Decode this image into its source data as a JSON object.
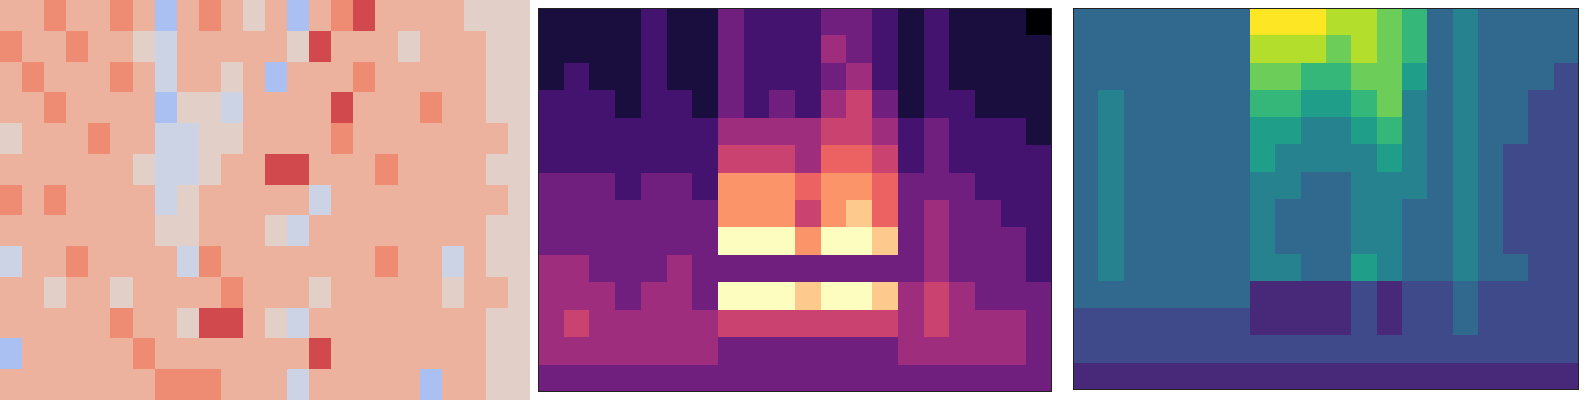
{
  "chart_data": [
    {
      "type": "heatmap",
      "color": "coolwarm",
      "tick_labels": false,
      "zlim": [
        0,
        9
      ],
      "cells": [
        [
          6,
          6,
          7,
          6,
          6,
          7,
          6,
          3,
          6,
          7,
          6,
          5,
          6,
          3,
          6,
          7,
          8,
          6,
          6,
          6,
          6,
          5,
          5,
          5
        ],
        [
          7,
          6,
          6,
          7,
          6,
          6,
          5,
          4,
          6,
          6,
          6,
          6,
          6,
          5,
          8,
          6,
          6,
          6,
          5,
          6,
          6,
          6,
          5,
          5
        ],
        [
          6,
          7,
          6,
          6,
          6,
          7,
          6,
          4,
          6,
          6,
          5,
          6,
          3,
          6,
          6,
          6,
          7,
          6,
          6,
          6,
          6,
          6,
          5,
          5
        ],
        [
          6,
          6,
          7,
          6,
          6,
          6,
          6,
          3,
          5,
          5,
          4,
          6,
          6,
          6,
          6,
          8,
          6,
          6,
          6,
          7,
          6,
          6,
          5,
          5
        ],
        [
          5,
          6,
          6,
          6,
          7,
          6,
          6,
          4,
          4,
          5,
          5,
          6,
          6,
          6,
          6,
          7,
          6,
          6,
          6,
          6,
          6,
          6,
          6,
          5
        ],
        [
          6,
          6,
          6,
          6,
          6,
          6,
          5,
          4,
          4,
          5,
          6,
          6,
          8,
          8,
          6,
          6,
          6,
          7,
          6,
          6,
          6,
          6,
          5,
          5
        ],
        [
          7,
          6,
          7,
          6,
          6,
          6,
          6,
          4,
          5,
          6,
          6,
          6,
          6,
          6,
          4,
          6,
          6,
          6,
          6,
          6,
          6,
          6,
          6,
          5
        ],
        [
          6,
          6,
          6,
          6,
          6,
          6,
          6,
          5,
          5,
          6,
          6,
          6,
          5,
          4,
          6,
          6,
          6,
          6,
          6,
          6,
          6,
          6,
          5,
          5
        ],
        [
          4,
          6,
          6,
          7,
          6,
          6,
          6,
          6,
          4,
          7,
          6,
          6,
          6,
          6,
          6,
          6,
          6,
          7,
          6,
          6,
          4,
          6,
          5,
          5
        ],
        [
          6,
          6,
          5,
          6,
          6,
          5,
          6,
          6,
          6,
          6,
          7,
          6,
          6,
          6,
          5,
          6,
          6,
          6,
          6,
          6,
          5,
          6,
          6,
          5
        ],
        [
          6,
          6,
          6,
          6,
          6,
          7,
          6,
          6,
          5,
          8,
          8,
          6,
          5,
          4,
          6,
          6,
          6,
          6,
          6,
          6,
          6,
          6,
          5,
          5
        ],
        [
          3,
          6,
          6,
          6,
          6,
          6,
          7,
          6,
          6,
          6,
          6,
          6,
          6,
          6,
          8,
          6,
          6,
          6,
          6,
          6,
          6,
          6,
          5,
          5
        ],
        [
          6,
          6,
          6,
          6,
          6,
          6,
          6,
          7,
          7,
          7,
          6,
          6,
          6,
          4,
          6,
          6,
          6,
          6,
          6,
          3,
          6,
          6,
          5,
          5
        ]
      ]
    },
    {
      "type": "heatmap",
      "color": "magma",
      "tick_labels": false,
      "zlim": [
        0,
        9
      ],
      "cells": [
        [
          1,
          1,
          1,
          1,
          2,
          1,
          1,
          3,
          2,
          2,
          2,
          3,
          3,
          2,
          1,
          2,
          1,
          1,
          1,
          0
        ],
        [
          1,
          1,
          1,
          1,
          2,
          1,
          1,
          3,
          2,
          2,
          2,
          4,
          3,
          2,
          1,
          2,
          1,
          1,
          1,
          1
        ],
        [
          1,
          2,
          1,
          1,
          2,
          1,
          1,
          3,
          2,
          2,
          2,
          3,
          4,
          2,
          1,
          2,
          1,
          1,
          1,
          1
        ],
        [
          2,
          2,
          2,
          1,
          2,
          2,
          1,
          3,
          2,
          3,
          2,
          4,
          5,
          3,
          1,
          2,
          2,
          1,
          1,
          1
        ],
        [
          2,
          2,
          2,
          2,
          2,
          2,
          2,
          4,
          4,
          4,
          4,
          5,
          5,
          4,
          2,
          3,
          2,
          2,
          2,
          1
        ],
        [
          2,
          2,
          2,
          2,
          2,
          2,
          2,
          5,
          5,
          5,
          4,
          6,
          6,
          5,
          2,
          3,
          2,
          2,
          2,
          2
        ],
        [
          3,
          3,
          3,
          2,
          3,
          3,
          2,
          7,
          7,
          7,
          6,
          7,
          7,
          6,
          3,
          3,
          3,
          2,
          2,
          2
        ],
        [
          3,
          3,
          3,
          3,
          3,
          3,
          3,
          7,
          7,
          7,
          5,
          7,
          8,
          6,
          3,
          4,
          3,
          3,
          2,
          2
        ],
        [
          3,
          3,
          3,
          3,
          3,
          3,
          3,
          9,
          9,
          9,
          7,
          9,
          9,
          8,
          3,
          4,
          3,
          3,
          3,
          2
        ],
        [
          4,
          4,
          3,
          3,
          3,
          4,
          3,
          3,
          3,
          3,
          3,
          3,
          3,
          3,
          3,
          4,
          3,
          3,
          3,
          2
        ],
        [
          4,
          4,
          4,
          3,
          4,
          4,
          3,
          9,
          9,
          9,
          8,
          9,
          9,
          8,
          4,
          5,
          4,
          3,
          3,
          3
        ],
        [
          4,
          5,
          4,
          4,
          4,
          4,
          4,
          5,
          5,
          5,
          5,
          5,
          5,
          5,
          4,
          5,
          4,
          4,
          4,
          3
        ],
        [
          4,
          4,
          4,
          4,
          4,
          4,
          4,
          3,
          3,
          3,
          3,
          3,
          3,
          3,
          4,
          4,
          4,
          4,
          4,
          3
        ],
        [
          3,
          3,
          3,
          3,
          3,
          3,
          3,
          3,
          3,
          3,
          3,
          3,
          3,
          3,
          3,
          3,
          3,
          3,
          3,
          3
        ]
      ]
    },
    {
      "type": "heatmap",
      "color": "viridis",
      "tick_labels": false,
      "zlim": [
        0,
        9
      ],
      "cells": [
        [
          3,
          3,
          3,
          3,
          3,
          3,
          3,
          9,
          9,
          9,
          8,
          8,
          7,
          6,
          3,
          4,
          3,
          3,
          3,
          3
        ],
        [
          3,
          3,
          3,
          3,
          3,
          3,
          3,
          8,
          8,
          8,
          7,
          8,
          7,
          6,
          3,
          4,
          3,
          3,
          3,
          3
        ],
        [
          3,
          3,
          3,
          3,
          3,
          3,
          3,
          7,
          7,
          6,
          6,
          7,
          7,
          5,
          3,
          4,
          3,
          3,
          3,
          2
        ],
        [
          3,
          4,
          3,
          3,
          3,
          3,
          3,
          6,
          6,
          5,
          5,
          6,
          7,
          4,
          3,
          4,
          3,
          3,
          2,
          2
        ],
        [
          3,
          4,
          3,
          3,
          3,
          3,
          3,
          5,
          5,
          4,
          4,
          5,
          6,
          4,
          3,
          4,
          3,
          3,
          2,
          2
        ],
        [
          3,
          4,
          3,
          3,
          3,
          3,
          3,
          5,
          4,
          4,
          4,
          4,
          5,
          4,
          3,
          4,
          3,
          2,
          2,
          2
        ],
        [
          3,
          4,
          3,
          3,
          3,
          3,
          3,
          4,
          4,
          3,
          3,
          4,
          4,
          4,
          3,
          4,
          3,
          2,
          2,
          2
        ],
        [
          3,
          4,
          3,
          3,
          3,
          3,
          3,
          4,
          3,
          3,
          3,
          4,
          4,
          3,
          3,
          4,
          3,
          2,
          2,
          2
        ],
        [
          3,
          4,
          3,
          3,
          3,
          3,
          3,
          4,
          3,
          3,
          3,
          4,
          4,
          3,
          3,
          4,
          3,
          2,
          2,
          2
        ],
        [
          3,
          4,
          3,
          3,
          3,
          3,
          3,
          4,
          4,
          3,
          3,
          5,
          4,
          3,
          3,
          4,
          3,
          3,
          2,
          2
        ],
        [
          3,
          3,
          3,
          3,
          3,
          3,
          3,
          1,
          1,
          1,
          1,
          2,
          1,
          2,
          2,
          3,
          2,
          2,
          2,
          2
        ],
        [
          2,
          2,
          2,
          2,
          2,
          2,
          2,
          1,
          1,
          1,
          1,
          2,
          1,
          2,
          2,
          3,
          2,
          2,
          2,
          2
        ],
        [
          2,
          2,
          2,
          2,
          2,
          2,
          2,
          2,
          2,
          2,
          2,
          2,
          2,
          2,
          2,
          2,
          2,
          2,
          2,
          2
        ],
        [
          1,
          1,
          1,
          1,
          1,
          1,
          1,
          1,
          1,
          1,
          1,
          1,
          1,
          1,
          1,
          1,
          1,
          1,
          1,
          1
        ]
      ]
    }
  ]
}
